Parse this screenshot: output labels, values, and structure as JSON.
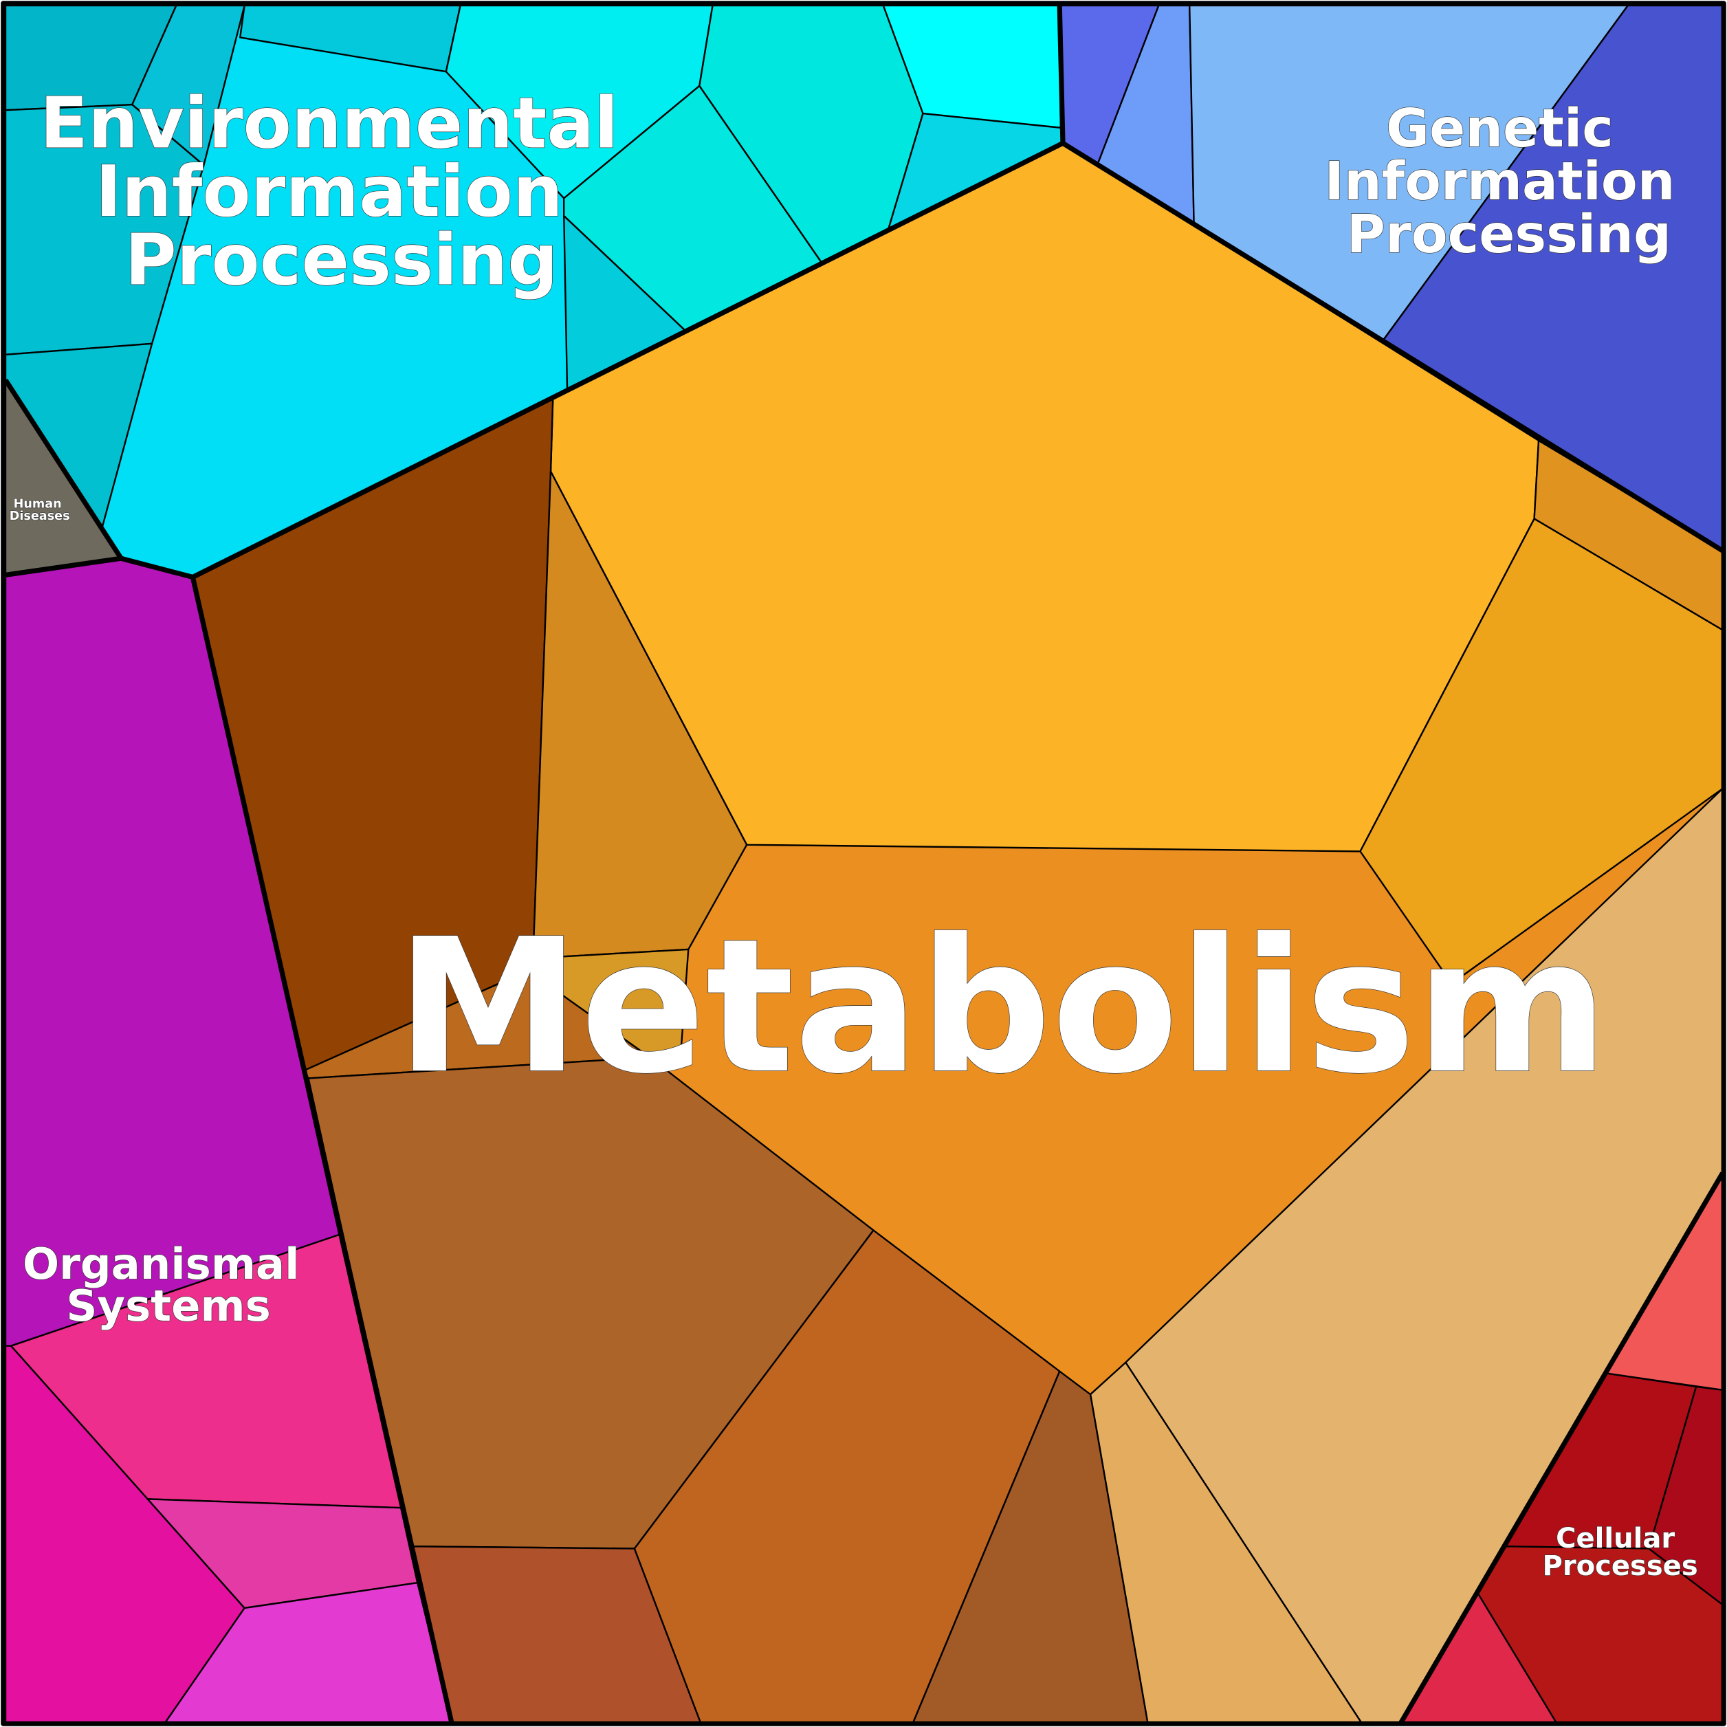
{
  "regions": [
    {
      "label_lines": [
        "Environmental",
        "Information",
        "Processing"
      ]
    },
    {
      "label_lines": [
        "Genetic",
        "Information",
        "Processing"
      ]
    },
    {
      "label_lines": [
        "Metabolism"
      ]
    },
    {
      "label_lines": [
        "Organismal",
        "Systems"
      ]
    },
    {
      "label_lines": [
        "Human",
        "Diseases"
      ]
    },
    {
      "label_lines": [
        "Cellular",
        "Processes"
      ]
    }
  ]
}
